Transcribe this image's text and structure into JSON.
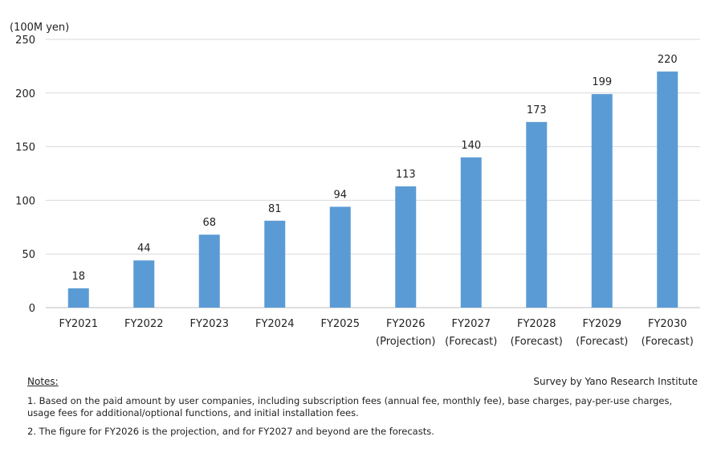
{
  "chart_data": {
    "type": "bar",
    "unit_label": "(100M yen)",
    "categories": [
      [
        "FY2021"
      ],
      [
        "FY2022"
      ],
      [
        "FY2023"
      ],
      [
        "FY2024"
      ],
      [
        "FY2025"
      ],
      [
        "FY2026",
        "(Projection)"
      ],
      [
        "FY2027",
        "(Forecast)"
      ],
      [
        "FY2028",
        "(Forecast)"
      ],
      [
        "FY2029",
        "(Forecast)"
      ],
      [
        "FY2030",
        "(Forecast)"
      ]
    ],
    "values": [
      18,
      44,
      68,
      81,
      94,
      113,
      140,
      173,
      199,
      220
    ],
    "ylim": [
      0,
      250
    ],
    "yticks": [
      0,
      50,
      100,
      150,
      200,
      250
    ],
    "grid": true,
    "bar_color": "#5b9bd5",
    "data_labels": true
  },
  "notes": {
    "title": "Notes:",
    "items": [
      "1.  Based on the paid amount by user companies, including subscription fees (annual fee, monthly fee), base charges, pay-per-use charges, usage fees for additional/optional functions, and initial installation fees.",
      "2.  The figure for FY2026 is the projection, and for FY2027 and beyond are the forecasts."
    ]
  },
  "source": "Survey by Yano Research Institute"
}
